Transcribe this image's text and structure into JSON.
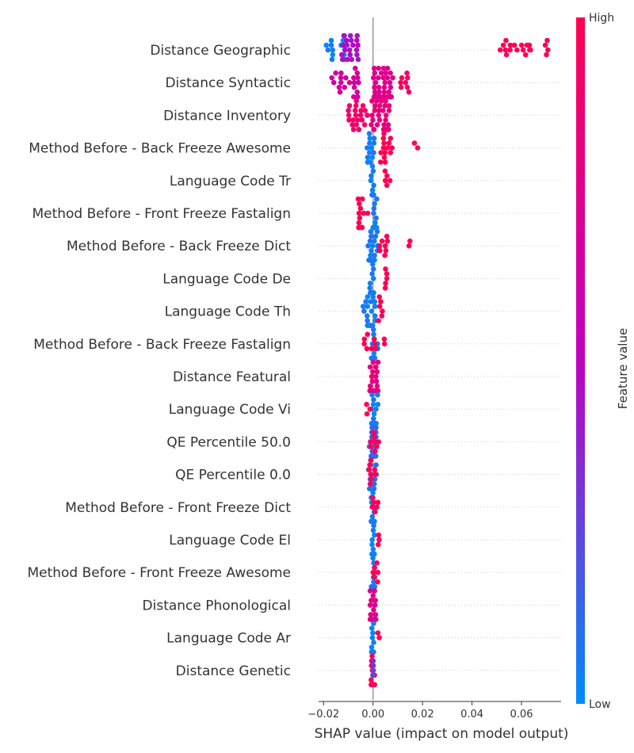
{
  "chart_data": {
    "type": "scatter",
    "subtype": "shap-beeswarm",
    "title": "",
    "xlabel": "SHAP value (impact on model output)",
    "xlim": [
      -0.022,
      0.076
    ],
    "xticks": [
      -0.02,
      0.0,
      0.02,
      0.04,
      0.06
    ],
    "xtick_labels": [
      "−0.02",
      "0.00",
      "0.02",
      "0.04",
      "0.06"
    ],
    "grid": false,
    "colorbar": {
      "title": "Feature value",
      "high_label": "High",
      "low_label": "Low",
      "high_color": "#ff0052",
      "mid_color": "#c000c0",
      "low_color": "#008bfb"
    },
    "features": [
      {
        "name": "Distance Geographic",
        "clusters": [
          {
            "x": -0.015,
            "spread": 0.004,
            "n": 14,
            "color": 0.05
          },
          {
            "x": -0.0095,
            "spread": 0.0035,
            "n": 20,
            "color": 0.45
          },
          {
            "x": 0.057,
            "spread": 0.008,
            "n": 14,
            "color": 1.0
          },
          {
            "x": 0.068,
            "spread": 0.006,
            "n": 6,
            "color": 0.98
          }
        ]
      },
      {
        "name": "Distance Syntactic",
        "clusters": [
          {
            "x": -0.011,
            "spread": 0.006,
            "n": 22,
            "color": 0.65
          },
          {
            "x": 0.004,
            "spread": 0.004,
            "n": 40,
            "color": 0.75
          },
          {
            "x": 0.013,
            "spread": 0.002,
            "n": 8,
            "color": 0.95
          }
        ]
      },
      {
        "name": "Distance Inventory",
        "clusters": [
          {
            "x": -0.006,
            "spread": 0.004,
            "n": 22,
            "color": 0.92
          },
          {
            "x": 0.003,
            "spread": 0.004,
            "n": 30,
            "color": 0.8
          }
        ]
      },
      {
        "name": "Method Before - Back Freeze Awesome",
        "clusters": [
          {
            "x": -0.001,
            "spread": 0.0015,
            "n": 14,
            "color": 0.05
          },
          {
            "x": 0.006,
            "spread": 0.003,
            "n": 14,
            "color": 1.0
          },
          {
            "x": 0.017,
            "spread": 0.0012,
            "n": 2,
            "color": 1.0
          }
        ]
      },
      {
        "name": "Language Code Tr",
        "clusters": [
          {
            "x": -0.0005,
            "spread": 0.0008,
            "n": 14,
            "color": 0.05
          },
          {
            "x": 0.006,
            "spread": 0.0012,
            "n": 5,
            "color": 1.0
          }
        ]
      },
      {
        "name": "Method Before - Front Freeze Fastalign",
        "clusters": [
          {
            "x": -0.004,
            "spread": 0.002,
            "n": 14,
            "color": 1.0
          },
          {
            "x": 0.0007,
            "spread": 0.0008,
            "n": 16,
            "color": 0.05
          }
        ]
      },
      {
        "name": "Method Before - Back Freeze Dict",
        "clusters": [
          {
            "x": 0.0,
            "spread": 0.002,
            "n": 18,
            "color": 0.05
          },
          {
            "x": 0.004,
            "spread": 0.002,
            "n": 8,
            "color": 1.0
          },
          {
            "x": 0.0145,
            "spread": 0.0006,
            "n": 2,
            "color": 1.0
          }
        ]
      },
      {
        "name": "Language Code De",
        "clusters": [
          {
            "x": -0.0005,
            "spread": 0.0008,
            "n": 14,
            "color": 0.05
          },
          {
            "x": 0.0045,
            "spread": 0.0012,
            "n": 5,
            "color": 1.0
          }
        ]
      },
      {
        "name": "Language Code Th",
        "clusters": [
          {
            "x": -0.0015,
            "spread": 0.0025,
            "n": 20,
            "color": 0.05
          },
          {
            "x": 0.0035,
            "spread": 0.0015,
            "n": 6,
            "color": 1.0
          }
        ]
      },
      {
        "name": "Method Before - Back Freeze Fastalign",
        "clusters": [
          {
            "x": 0.0005,
            "spread": 0.0015,
            "n": 16,
            "color": 0.05
          },
          {
            "x": -0.001,
            "spread": 0.0035,
            "n": 8,
            "color": 1.0
          },
          {
            "x": 0.004,
            "spread": 0.001,
            "n": 2,
            "color": 1.0
          }
        ]
      },
      {
        "name": "Distance Featural",
        "clusters": [
          {
            "x": 0.0005,
            "spread": 0.0018,
            "n": 24,
            "color": 0.8
          }
        ]
      },
      {
        "name": "Language Code Vi",
        "clusters": [
          {
            "x": 0.0005,
            "spread": 0.0018,
            "n": 18,
            "color": 0.05
          },
          {
            "x": -0.002,
            "spread": 0.0008,
            "n": 3,
            "color": 1.0
          }
        ]
      },
      {
        "name": "QE Percentile 50.0",
        "clusters": [
          {
            "x": 0.0,
            "spread": 0.0015,
            "n": 22,
            "color": 0.15
          },
          {
            "x": 0.0005,
            "spread": 0.0018,
            "n": 8,
            "color": 0.95
          }
        ]
      },
      {
        "name": "QE Percentile 0.0",
        "clusters": [
          {
            "x": 0.0,
            "spread": 0.0018,
            "n": 22,
            "color": 0.1
          },
          {
            "x": -0.0005,
            "spread": 0.0015,
            "n": 8,
            "color": 0.95
          }
        ]
      },
      {
        "name": "Method Before - Front Freeze Dict",
        "clusters": [
          {
            "x": 0.0,
            "spread": 0.0008,
            "n": 16,
            "color": 0.05
          },
          {
            "x": 0.0,
            "spread": 0.0025,
            "n": 6,
            "color": 1.0
          }
        ]
      },
      {
        "name": "Language Code El",
        "clusters": [
          {
            "x": 0.0,
            "spread": 0.0006,
            "n": 16,
            "color": 0.05
          },
          {
            "x": 0.0022,
            "spread": 0.0006,
            "n": 3,
            "color": 1.0
          }
        ]
      },
      {
        "name": "Method Before - Front Freeze Awesome",
        "clusters": [
          {
            "x": 0.0,
            "spread": 0.0007,
            "n": 16,
            "color": 0.05
          },
          {
            "x": 0.001,
            "spread": 0.0022,
            "n": 6,
            "color": 1.0
          }
        ]
      },
      {
        "name": "Distance Phonological",
        "clusters": [
          {
            "x": 0.0,
            "spread": 0.0012,
            "n": 18,
            "color": 0.72
          }
        ]
      },
      {
        "name": "Language Code Ar",
        "clusters": [
          {
            "x": -0.0002,
            "spread": 0.0006,
            "n": 16,
            "color": 0.05
          },
          {
            "x": 0.002,
            "spread": 0.0006,
            "n": 2,
            "color": 1.0
          }
        ]
      },
      {
        "name": "Distance Genetic",
        "clusters": [
          {
            "x": 0.0,
            "spread": 0.0008,
            "n": 16,
            "color": 0.97
          },
          {
            "x": 0.0,
            "spread": 0.0005,
            "n": 4,
            "color": 0.3
          }
        ]
      }
    ]
  }
}
